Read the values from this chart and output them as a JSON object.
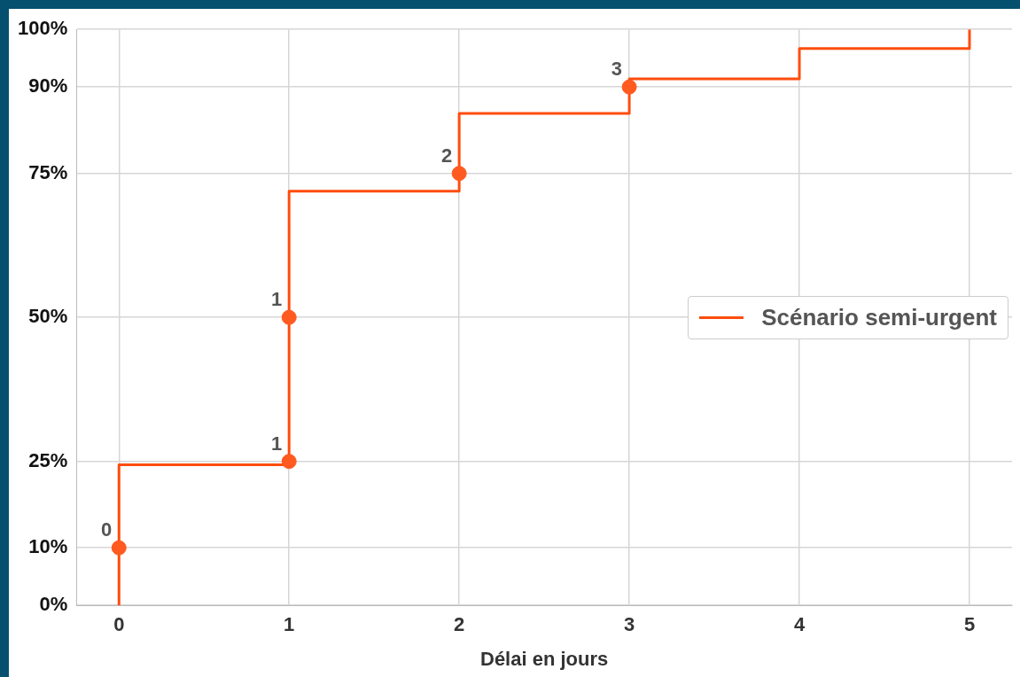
{
  "chart_data": {
    "type": "step",
    "xlabel": "Délai en jours",
    "xlim": [
      -0.25,
      5.25
    ],
    "xticks": [
      0,
      1,
      2,
      3,
      4,
      5
    ],
    "ylim": [
      0,
      100
    ],
    "yticks": [
      {
        "value": 0,
        "label": "0%"
      },
      {
        "value": 10,
        "label": "10%"
      },
      {
        "value": 25,
        "label": "25%"
      },
      {
        "value": 50,
        "label": "50%"
      },
      {
        "value": 75,
        "label": "75%"
      },
      {
        "value": 90,
        "label": "90%"
      },
      {
        "value": 100,
        "label": "100%"
      }
    ],
    "grid": true,
    "legend": "right",
    "line_style": "solid",
    "series": [
      {
        "name": "Scénario semi-urgent",
        "type": "step",
        "color": "#ff4d0d",
        "marker": "none",
        "x": [
          0,
          0,
          1,
          2,
          3,
          4,
          5
        ],
        "values": [
          0,
          24.4,
          71.9,
          85.4,
          91.4,
          96.7,
          100
        ]
      },
      {
        "type": "scatter",
        "color": "#ff5a1f",
        "marker": "circle",
        "x": [
          0,
          1,
          1,
          2,
          3
        ],
        "values": [
          10,
          25,
          50,
          75,
          90
        ]
      }
    ],
    "annotations": [
      {
        "text": "0",
        "x": 0,
        "y": 10
      },
      {
        "text": "1",
        "x": 1,
        "y": 25
      },
      {
        "text": "1",
        "x": 1,
        "y": 50
      },
      {
        "text": "2",
        "x": 2,
        "y": 75
      },
      {
        "text": "3",
        "x": 3,
        "y": 90
      }
    ]
  }
}
